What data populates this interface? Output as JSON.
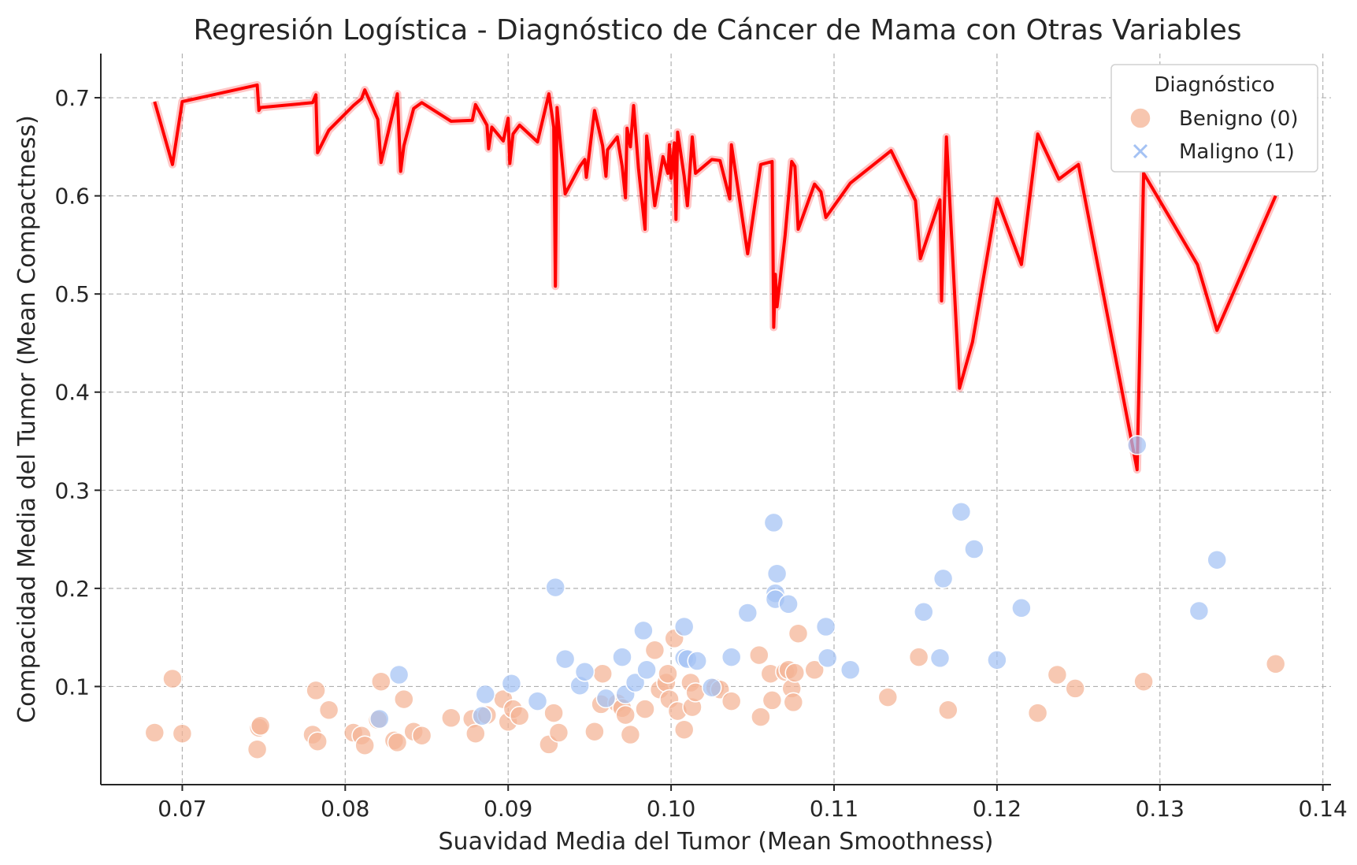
{
  "chart_data": {
    "type": "scatter",
    "title": "Regresión Logística - Diagnóstico de Cáncer de Mama con Otras Variables",
    "xlabel": "Suavidad Media del Tumor (Mean Smoothness)",
    "ylabel": "Compacidad Media del Tumor (Mean Compactness)",
    "xlim": [
      0.065,
      0.1405
    ],
    "ylim": [
      0.0,
      0.745
    ],
    "xticks": [
      "0.07",
      "0.08",
      "0.09",
      "0.10",
      "0.11",
      "0.12",
      "0.13",
      "0.14"
    ],
    "yticks": [
      "0.1",
      "0.2",
      "0.3",
      "0.4",
      "0.5",
      "0.6",
      "0.7"
    ],
    "grid": true,
    "legend": {
      "title": "Diagnóstico",
      "placement": "top-right",
      "entries": [
        {
          "label": "Benigno (0)",
          "marker": "circle",
          "color": "#f4b394"
        },
        {
          "label": "Maligno (1)",
          "marker": "x",
          "color": "#a4c2f4"
        }
      ]
    },
    "series": [
      {
        "name": "Benigno (0)",
        "color": "#f4b394",
        "points": [
          [
            0.0683,
            0.053
          ],
          [
            0.0694,
            0.108
          ],
          [
            0.07,
            0.052
          ],
          [
            0.0746,
            0.036
          ],
          [
            0.0747,
            0.058
          ],
          [
            0.0748,
            0.06
          ],
          [
            0.078,
            0.051
          ],
          [
            0.0782,
            0.096
          ],
          [
            0.0783,
            0.044
          ],
          [
            0.079,
            0.076
          ],
          [
            0.0805,
            0.053
          ],
          [
            0.081,
            0.05
          ],
          [
            0.0812,
            0.04
          ],
          [
            0.082,
            0.066
          ],
          [
            0.0822,
            0.105
          ],
          [
            0.083,
            0.045
          ],
          [
            0.0832,
            0.043
          ],
          [
            0.0836,
            0.087
          ],
          [
            0.0842,
            0.054
          ],
          [
            0.0847,
            0.05
          ],
          [
            0.0865,
            0.068
          ],
          [
            0.0878,
            0.067
          ],
          [
            0.088,
            0.052
          ],
          [
            0.0887,
            0.071
          ],
          [
            0.0897,
            0.087
          ],
          [
            0.09,
            0.064
          ],
          [
            0.0903,
            0.077
          ],
          [
            0.0907,
            0.07
          ],
          [
            0.0925,
            0.041
          ],
          [
            0.0928,
            0.073
          ],
          [
            0.0931,
            0.053
          ],
          [
            0.0953,
            0.054
          ],
          [
            0.0957,
            0.082
          ],
          [
            0.0958,
            0.113
          ],
          [
            0.0967,
            0.083
          ],
          [
            0.097,
            0.078
          ],
          [
            0.0972,
            0.071
          ],
          [
            0.0975,
            0.051
          ],
          [
            0.0984,
            0.077
          ],
          [
            0.099,
            0.137
          ],
          [
            0.0993,
            0.097
          ],
          [
            0.0997,
            0.104
          ],
          [
            0.0998,
            0.113
          ],
          [
            0.0999,
            0.087
          ],
          [
            0.1002,
            0.149
          ],
          [
            0.1004,
            0.075
          ],
          [
            0.1008,
            0.056
          ],
          [
            0.1012,
            0.104
          ],
          [
            0.1013,
            0.079
          ],
          [
            0.1015,
            0.094
          ],
          [
            0.1027,
            0.099
          ],
          [
            0.103,
            0.097
          ],
          [
            0.1037,
            0.085
          ],
          [
            0.1054,
            0.132
          ],
          [
            0.1055,
            0.069
          ],
          [
            0.1061,
            0.113
          ],
          [
            0.1062,
            0.086
          ],
          [
            0.107,
            0.115
          ],
          [
            0.1072,
            0.117
          ],
          [
            0.1074,
            0.098
          ],
          [
            0.1075,
            0.084
          ],
          [
            0.1076,
            0.114
          ],
          [
            0.1078,
            0.154
          ],
          [
            0.1088,
            0.117
          ],
          [
            0.1133,
            0.089
          ],
          [
            0.1152,
            0.13
          ],
          [
            0.117,
            0.076
          ],
          [
            0.1225,
            0.073
          ],
          [
            0.1237,
            0.112
          ],
          [
            0.1248,
            0.098
          ],
          [
            0.129,
            0.105
          ],
          [
            0.1371,
            0.123
          ]
        ]
      },
      {
        "name": "Maligno (1)",
        "color": "#a4c2f4",
        "points": [
          [
            0.0821,
            0.067
          ],
          [
            0.0833,
            0.112
          ],
          [
            0.0884,
            0.07
          ],
          [
            0.0886,
            0.092
          ],
          [
            0.0902,
            0.103
          ],
          [
            0.0918,
            0.085
          ],
          [
            0.0929,
            0.201
          ],
          [
            0.0935,
            0.128
          ],
          [
            0.0944,
            0.101
          ],
          [
            0.0947,
            0.115
          ],
          [
            0.096,
            0.088
          ],
          [
            0.097,
            0.13
          ],
          [
            0.0972,
            0.092
          ],
          [
            0.0978,
            0.104
          ],
          [
            0.0983,
            0.157
          ],
          [
            0.0985,
            0.117
          ],
          [
            0.1008,
            0.161
          ],
          [
            0.1008,
            0.129
          ],
          [
            0.101,
            0.128
          ],
          [
            0.1016,
            0.126
          ],
          [
            0.1025,
            0.099
          ],
          [
            0.1037,
            0.13
          ],
          [
            0.1047,
            0.175
          ],
          [
            0.1063,
            0.267
          ],
          [
            0.1064,
            0.195
          ],
          [
            0.1064,
            0.189
          ],
          [
            0.1065,
            0.215
          ],
          [
            0.1072,
            0.184
          ],
          [
            0.1095,
            0.161
          ],
          [
            0.1096,
            0.129
          ],
          [
            0.111,
            0.117
          ],
          [
            0.1155,
            0.176
          ],
          [
            0.1165,
            0.129
          ],
          [
            0.1167,
            0.21
          ],
          [
            0.1178,
            0.278
          ],
          [
            0.1186,
            0.24
          ],
          [
            0.12,
            0.127
          ],
          [
            0.1215,
            0.18
          ],
          [
            0.1286,
            0.346
          ],
          [
            0.1324,
            0.177
          ],
          [
            0.1335,
            0.229
          ]
        ]
      },
      {
        "name": "",
        "type": "line",
        "color": "#ff0000",
        "points": [
          [
            0.0683,
            0.696
          ],
          [
            0.0694,
            0.632
          ],
          [
            0.07,
            0.696
          ],
          [
            0.0746,
            0.713
          ],
          [
            0.0747,
            0.687
          ],
          [
            0.0748,
            0.69
          ],
          [
            0.078,
            0.695
          ],
          [
            0.0782,
            0.703
          ],
          [
            0.0783,
            0.644
          ],
          [
            0.079,
            0.667
          ],
          [
            0.0805,
            0.692
          ],
          [
            0.081,
            0.699
          ],
          [
            0.0812,
            0.708
          ],
          [
            0.082,
            0.678
          ],
          [
            0.0822,
            0.634
          ],
          [
            0.083,
            0.69
          ],
          [
            0.0832,
            0.704
          ],
          [
            0.0834,
            0.625
          ],
          [
            0.0836,
            0.651
          ],
          [
            0.0842,
            0.689
          ],
          [
            0.0847,
            0.695
          ],
          [
            0.0865,
            0.676
          ],
          [
            0.0878,
            0.677
          ],
          [
            0.088,
            0.693
          ],
          [
            0.0887,
            0.672
          ],
          [
            0.0888,
            0.648
          ],
          [
            0.089,
            0.67
          ],
          [
            0.0897,
            0.656
          ],
          [
            0.09,
            0.679
          ],
          [
            0.0901,
            0.633
          ],
          [
            0.0903,
            0.663
          ],
          [
            0.0907,
            0.672
          ],
          [
            0.0918,
            0.655
          ],
          [
            0.0925,
            0.704
          ],
          [
            0.0928,
            0.67
          ],
          [
            0.0929,
            0.508
          ],
          [
            0.093,
            0.69
          ],
          [
            0.0935,
            0.602
          ],
          [
            0.0944,
            0.63
          ],
          [
            0.0947,
            0.637
          ],
          [
            0.0948,
            0.619
          ],
          [
            0.0953,
            0.687
          ],
          [
            0.0958,
            0.651
          ],
          [
            0.096,
            0.62
          ],
          [
            0.0961,
            0.647
          ],
          [
            0.0967,
            0.66
          ],
          [
            0.097,
            0.63
          ],
          [
            0.0972,
            0.598
          ],
          [
            0.0973,
            0.669
          ],
          [
            0.0975,
            0.65
          ],
          [
            0.0977,
            0.692
          ],
          [
            0.098,
            0.628
          ],
          [
            0.0984,
            0.566
          ],
          [
            0.0985,
            0.661
          ],
          [
            0.0988,
            0.62
          ],
          [
            0.099,
            0.59
          ],
          [
            0.0995,
            0.64
          ],
          [
            0.0998,
            0.623
          ],
          [
            0.0999,
            0.652
          ],
          [
            0.1,
            0.618
          ],
          [
            0.1002,
            0.654
          ],
          [
            0.1003,
            0.576
          ],
          [
            0.1004,
            0.665
          ],
          [
            0.1008,
            0.62
          ],
          [
            0.101,
            0.59
          ],
          [
            0.1013,
            0.66
          ],
          [
            0.1015,
            0.623
          ],
          [
            0.1025,
            0.637
          ],
          [
            0.103,
            0.636
          ],
          [
            0.1036,
            0.597
          ],
          [
            0.1037,
            0.652
          ],
          [
            0.1047,
            0.541
          ],
          [
            0.1055,
            0.632
          ],
          [
            0.1062,
            0.635
          ],
          [
            0.1063,
            0.466
          ],
          [
            0.1064,
            0.52
          ],
          [
            0.1065,
            0.487
          ],
          [
            0.107,
            0.56
          ],
          [
            0.1074,
            0.635
          ],
          [
            0.1076,
            0.63
          ],
          [
            0.1078,
            0.566
          ],
          [
            0.1088,
            0.612
          ],
          [
            0.1092,
            0.604
          ],
          [
            0.1095,
            0.578
          ],
          [
            0.111,
            0.613
          ],
          [
            0.1135,
            0.646
          ],
          [
            0.115,
            0.595
          ],
          [
            0.1153,
            0.536
          ],
          [
            0.1165,
            0.596
          ],
          [
            0.1166,
            0.493
          ],
          [
            0.1169,
            0.66
          ],
          [
            0.1177,
            0.404
          ],
          [
            0.1185,
            0.451
          ],
          [
            0.12,
            0.597
          ],
          [
            0.1215,
            0.53
          ],
          [
            0.1225,
            0.663
          ],
          [
            0.1238,
            0.617
          ],
          [
            0.125,
            0.632
          ],
          [
            0.1286,
            0.321
          ],
          [
            0.129,
            0.623
          ],
          [
            0.1323,
            0.53
          ],
          [
            0.1335,
            0.463
          ],
          [
            0.1371,
            0.6
          ]
        ]
      }
    ]
  }
}
